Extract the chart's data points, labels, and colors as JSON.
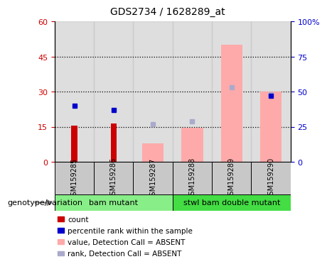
{
  "title": "GDS2734 / 1628289_at",
  "samples": [
    "GSM159285",
    "GSM159286",
    "GSM159287",
    "GSM159288",
    "GSM159289",
    "GSM159290"
  ],
  "count_values": [
    15.5,
    16.5,
    null,
    null,
    null,
    null
  ],
  "value_absent_bars": [
    null,
    null,
    8.0,
    14.5,
    50.0,
    30.0
  ],
  "rank_absent_markers_pct": [
    null,
    null,
    27.0,
    29.0,
    53.0,
    48.0
  ],
  "percentile_rank_dots_pct": [
    40.0,
    37.0,
    null,
    null,
    null,
    47.0
  ],
  "left_ylim": [
    0,
    60
  ],
  "right_ylim": [
    0,
    100
  ],
  "left_yticks": [
    0,
    15,
    30,
    45,
    60
  ],
  "right_yticks": [
    0,
    25,
    50,
    75,
    100
  ],
  "left_yticklabels": [
    "0",
    "15",
    "30",
    "45",
    "60"
  ],
  "right_yticklabels": [
    "0",
    "25",
    "50",
    "75",
    "100%"
  ],
  "group1_label": "bam mutant",
  "group2_label": "stwl bam double mutant",
  "group1_color": "#88ee88",
  "group2_color": "#44dd44",
  "bar_bg_color": "#c8c8c8",
  "count_color": "#cc0000",
  "rank_color": "#0000cc",
  "value_absent_color": "#ffaaaa",
  "rank_absent_color": "#aaaacc",
  "legend_items": [
    {
      "label": "count",
      "color": "#cc0000"
    },
    {
      "label": "percentile rank within the sample",
      "color": "#0000cc"
    },
    {
      "label": "value, Detection Call = ABSENT",
      "color": "#ffaaaa"
    },
    {
      "label": "rank, Detection Call = ABSENT",
      "color": "#aaaacc"
    }
  ],
  "genotype_label": "genotype/variation"
}
